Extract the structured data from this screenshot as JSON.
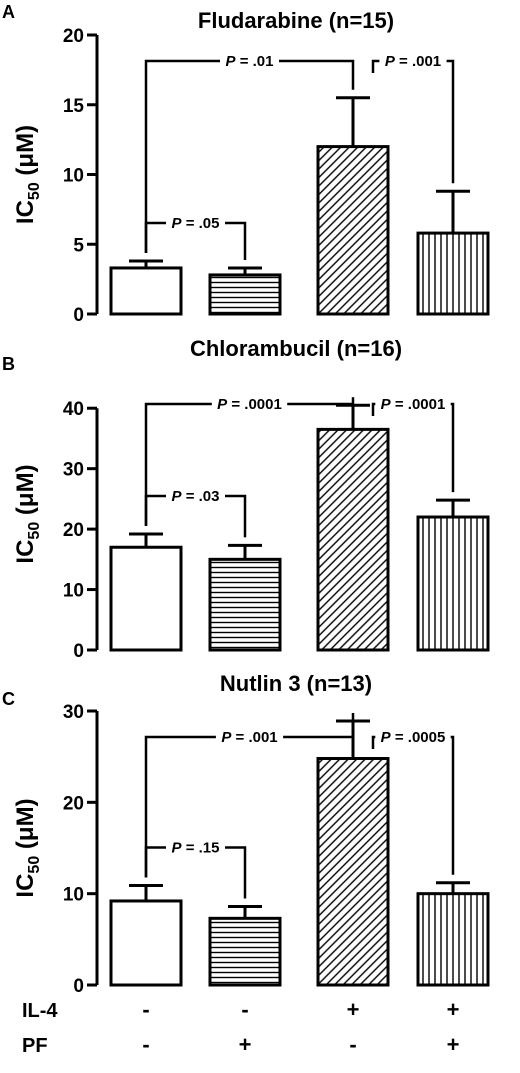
{
  "chart_data": [
    {
      "panel_label": "A",
      "type": "bar",
      "title": "Fludarabine (n=15)",
      "ylabel_main": "IC",
      "ylabel_sub": "50",
      "ylabel_unit": "(μM)",
      "ylim": [
        0,
        20
      ],
      "yticks": [
        0,
        5,
        10,
        15,
        20
      ],
      "values": [
        3.3,
        2.8,
        12.0,
        5.8
      ],
      "errors": [
        0.5,
        0.5,
        3.5,
        3.0
      ],
      "fills": [
        "none",
        "hlines",
        "diag",
        "vlines"
      ],
      "comparisons": [
        {
          "from": 0,
          "to": 1,
          "p": "= .05"
        },
        {
          "from": 0,
          "to": 2,
          "p": "= .01"
        },
        {
          "from": 2,
          "to": 3,
          "p": "= .001"
        }
      ]
    },
    {
      "panel_label": "B",
      "type": "bar",
      "title": "Chlorambucil (n=16)",
      "ylabel_main": "IC",
      "ylabel_sub": "50",
      "ylabel_unit": "(μM)",
      "ylim": [
        0,
        45
      ],
      "yticks": [
        0,
        10,
        20,
        30,
        40
      ],
      "values": [
        17,
        15,
        36.5,
        22
      ],
      "errors": [
        2.2,
        2.3,
        4.0,
        2.8
      ],
      "fills": [
        "none",
        "hlines",
        "diag",
        "vlines"
      ],
      "comparisons": [
        {
          "from": 0,
          "to": 1,
          "p": "= .03"
        },
        {
          "from": 0,
          "to": 2,
          "p": "= .0001"
        },
        {
          "from": 2,
          "to": 3,
          "p": "= .0001"
        }
      ]
    },
    {
      "panel_label": "C",
      "type": "bar",
      "title": "Nutlin 3 (n=13)",
      "ylabel_main": "IC",
      "ylabel_sub": "50",
      "ylabel_unit": "(μM)",
      "ylim": [
        0,
        30
      ],
      "yticks": [
        0,
        10,
        20,
        30
      ],
      "values": [
        9.2,
        7.3,
        24.8,
        10
      ],
      "errors": [
        1.7,
        1.3,
        4.1,
        1.2
      ],
      "fills": [
        "none",
        "hlines",
        "diag",
        "vlines"
      ],
      "comparisons": [
        {
          "from": 0,
          "to": 1,
          "p": "= .15"
        },
        {
          "from": 0,
          "to": 2,
          "p": "= .001"
        },
        {
          "from": 2,
          "to": 3,
          "p": "= .0005"
        }
      ]
    }
  ],
  "p_symbol": "P",
  "conditions": [
    {
      "label": "IL-4",
      "values": [
        "-",
        "-",
        "+",
        "+"
      ]
    },
    {
      "label": "PF",
      "values": [
        "-",
        "+",
        "-",
        "+"
      ]
    }
  ]
}
